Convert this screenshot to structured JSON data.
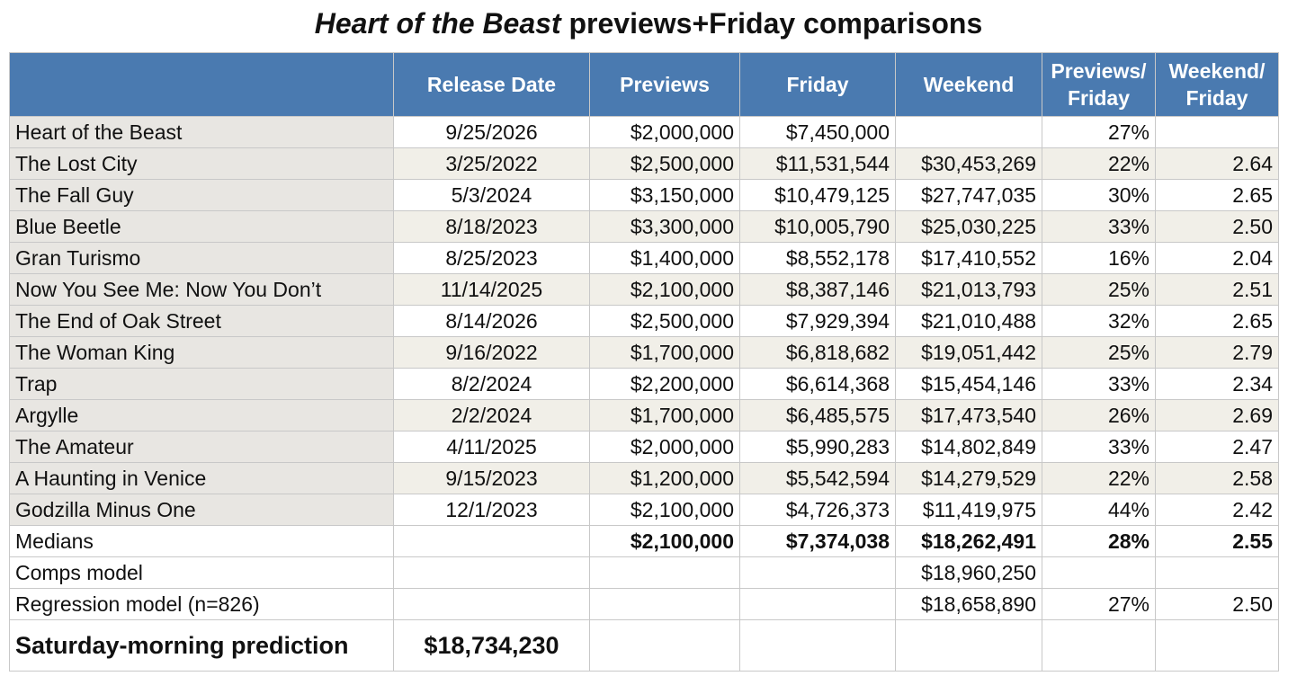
{
  "title": {
    "italic": "Heart of the Beast",
    "rest": " previews+Friday comparisons"
  },
  "headers": [
    "",
    "Release Date",
    "Previews",
    "Friday",
    "Weekend",
    "Previews/ Friday",
    "Weekend/ Friday"
  ],
  "rows": [
    [
      "Heart of the Beast",
      "9/25/2026",
      "$2,000,000",
      "$7,450,000",
      "",
      "27%",
      ""
    ],
    [
      "The Lost City",
      "3/25/2022",
      "$2,500,000",
      "$11,531,544",
      "$30,453,269",
      "22%",
      "2.64"
    ],
    [
      "The Fall Guy",
      "5/3/2024",
      "$3,150,000",
      "$10,479,125",
      "$27,747,035",
      "30%",
      "2.65"
    ],
    [
      "Blue Beetle",
      "8/18/2023",
      "$3,300,000",
      "$10,005,790",
      "$25,030,225",
      "33%",
      "2.50"
    ],
    [
      "Gran Turismo",
      "8/25/2023",
      "$1,400,000",
      "$8,552,178",
      "$17,410,552",
      "16%",
      "2.04"
    ],
    [
      "Now You See Me: Now You Don’t",
      "11/14/2025",
      "$2,100,000",
      "$8,387,146",
      "$21,013,793",
      "25%",
      "2.51"
    ],
    [
      "The End of Oak Street",
      "8/14/2026",
      "$2,500,000",
      "$7,929,394",
      "$21,010,488",
      "32%",
      "2.65"
    ],
    [
      "The Woman King",
      "9/16/2022",
      "$1,700,000",
      "$6,818,682",
      "$19,051,442",
      "25%",
      "2.79"
    ],
    [
      "Trap",
      "8/2/2024",
      "$2,200,000",
      "$6,614,368",
      "$15,454,146",
      "33%",
      "2.34"
    ],
    [
      "Argylle",
      "2/2/2024",
      "$1,700,000",
      "$6,485,575",
      "$17,473,540",
      "26%",
      "2.69"
    ],
    [
      "The Amateur",
      "4/11/2025",
      "$2,000,000",
      "$5,990,283",
      "$14,802,849",
      "33%",
      "2.47"
    ],
    [
      "A Haunting in Venice",
      "9/15/2023",
      "$1,200,000",
      "$5,542,594",
      "$14,279,529",
      "22%",
      "2.58"
    ],
    [
      "Godzilla Minus One",
      "12/1/2023",
      "$2,100,000",
      "$4,726,373",
      "$11,419,975",
      "44%",
      "2.42"
    ]
  ],
  "summary": [
    [
      "Medians",
      "",
      "$2,100,000",
      "$7,374,038",
      "$18,262,491",
      "28%",
      "2.55"
    ],
    [
      "Comps model",
      "",
      "",
      "",
      "$18,960,250",
      "",
      ""
    ],
    [
      "Regression model (n=826)",
      "",
      "",
      "",
      "$18,658,890",
      "27%",
      "2.50"
    ]
  ],
  "prediction": {
    "label": "Saturday-morning prediction",
    "value": "$18,734,230"
  }
}
